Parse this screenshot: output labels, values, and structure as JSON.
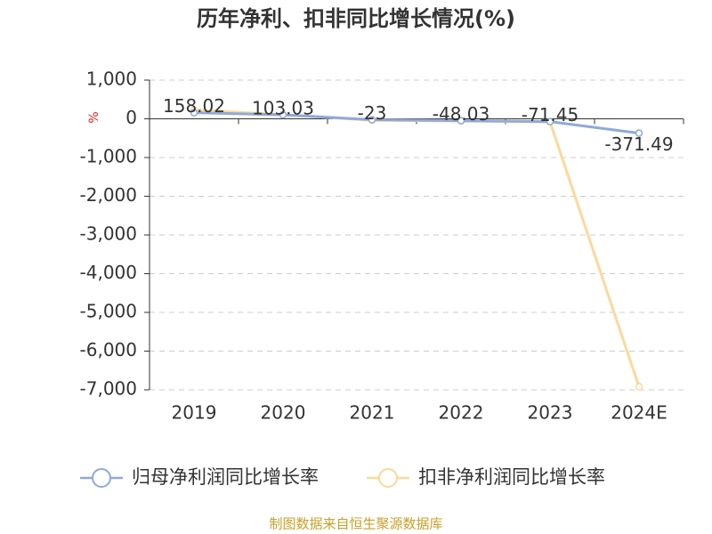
{
  "chart_data": {
    "type": "line",
    "title": "历年净利、扣非同比增长情况(%)",
    "y_label": "%",
    "categories": [
      "2019",
      "2020",
      "2021",
      "2022",
      "2023",
      "2024E"
    ],
    "series": [
      {
        "name": "归母净利润同比增长率",
        "color": "#8fa9da",
        "values": [
          158.02,
          103.03,
          -23,
          -48.03,
          -71.45,
          -371.49
        ]
      },
      {
        "name": "扣非净利润同比增长率",
        "color": "#fbd99b",
        "values": [
          230,
          110,
          -40,
          -60,
          -80,
          -6920
        ]
      }
    ],
    "ylim": [
      -7000,
      1000
    ],
    "yticks": [
      {
        "value": 1000,
        "label": "1,000"
      },
      0,
      {
        "value": -1000,
        "label": "-1,000"
      },
      {
        "value": -2000,
        "label": "-2,000"
      },
      {
        "value": -3000,
        "label": "-3,000"
      },
      {
        "value": -4000,
        "label": "-4,000"
      },
      {
        "value": -5000,
        "label": "-5,000"
      },
      {
        "value": -6000,
        "label": "-6,000"
      },
      {
        "value": -7000,
        "label": "-7,000"
      }
    ],
    "grid": true,
    "data_labels_series": 0,
    "source": "制图数据来自恒生聚源数据库"
  }
}
